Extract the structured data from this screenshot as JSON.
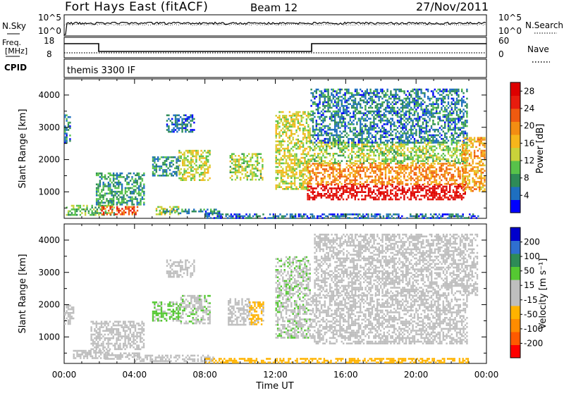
{
  "header": {
    "radar": "Fort Hays East (fitACF)",
    "beam": "Beam 12",
    "date": "27/Nov/2011"
  },
  "noise_panel": {
    "left_label": "N.Sky",
    "right_label": "N.Search",
    "left_ticks": [
      "10^5",
      "10^0"
    ],
    "right_ticks": [
      "10^5",
      "10^0"
    ]
  },
  "freq_panel": {
    "left_label_1": "Freq.",
    "left_label_2": "[MHz]",
    "right_label": "Nave",
    "left_ticks": [
      "18",
      "8"
    ],
    "right_ticks": [
      "60",
      "0"
    ]
  },
  "cpid_panel": {
    "label": "CPID",
    "program": "themis 3300 IF"
  },
  "x_axis": {
    "label": "Time UT",
    "ticks": [
      "00:00",
      "04:00",
      "08:00",
      "12:00",
      "16:00",
      "20:00",
      "00:00"
    ]
  },
  "colors": {
    "power": [
      "#0000ff",
      "#1e6fbf",
      "#2e8b57",
      "#58c24a",
      "#c9d23a",
      "#f6b61b",
      "#f38d12",
      "#ef5a10",
      "#e81c0e",
      "#dd0000"
    ],
    "velocity": [
      "#ff0000",
      "#ff5a00",
      "#ff8c00",
      "#ffb300",
      "#bebebe",
      "#bebebe",
      "#55c832",
      "#2e8b57",
      "#2f6fd0",
      "#0000cc"
    ]
  },
  "chart_data": [
    {
      "type": "heatmap",
      "title": "Power",
      "ylabel": "Slant Range [km]",
      "xlabel": "",
      "ylim": [
        180,
        4500
      ],
      "xlim_hours": [
        0,
        24
      ],
      "yticks": [
        1000,
        2000,
        3000,
        4000
      ],
      "colorbar": {
        "label": "Power [dB]",
        "ticks": [
          4,
          8,
          12,
          16,
          20,
          24,
          28
        ],
        "range": [
          0,
          30
        ]
      },
      "features": [
        {
          "t": [
            0.1,
            2.8
          ],
          "r": [
            280,
            600
          ],
          "v": 10
        },
        {
          "t": [
            2.1,
            4.2
          ],
          "r": [
            330,
            560
          ],
          "v": 24
        },
        {
          "t": [
            1.8,
            4.5
          ],
          "r": [
            600,
            1600
          ],
          "v": 8
        },
        {
          "t": [
            5.2,
            6.5
          ],
          "r": [
            330,
            560
          ],
          "v": 14
        },
        {
          "t": [
            5.6,
            8.8
          ],
          "r": [
            330,
            480
          ],
          "v": 6
        },
        {
          "t": [
            5.0,
            6.6
          ],
          "r": [
            1500,
            2100
          ],
          "v": 7
        },
        {
          "t": [
            6.5,
            8.3
          ],
          "r": [
            1350,
            2300
          ],
          "v": 13
        },
        {
          "t": [
            9.4,
            11.3
          ],
          "r": [
            1350,
            2200
          ],
          "v": 12
        },
        {
          "t": [
            5.8,
            7.4
          ],
          "r": [
            2850,
            3400
          ],
          "v": 5
        },
        {
          "t": [
            12.0,
            14.0
          ],
          "r": [
            1100,
            3500
          ],
          "v": 14
        },
        {
          "t": [
            13.8,
            22.8
          ],
          "r": [
            750,
            1250
          ],
          "v": 28
        },
        {
          "t": [
            13.8,
            22.8
          ],
          "r": [
            1250,
            1900
          ],
          "v": 20
        },
        {
          "t": [
            14.0,
            22.9
          ],
          "r": [
            1900,
            2550
          ],
          "v": 12
        },
        {
          "t": [
            14.0,
            22.9
          ],
          "r": [
            2550,
            4200
          ],
          "v": 6
        },
        {
          "t": [
            22.6,
            23.9
          ],
          "r": [
            1000,
            2700
          ],
          "v": 18
        },
        {
          "t": [
            8.0,
            23.5
          ],
          "r": [
            200,
            330
          ],
          "v": 5
        },
        {
          "t": [
            0.0,
            0.3
          ],
          "r": [
            2500,
            3400
          ],
          "v": 6
        }
      ]
    },
    {
      "type": "heatmap",
      "title": "Velocity",
      "ylabel": "Slant Range [km]",
      "xlabel": "Time UT",
      "ylim": [
        180,
        4500
      ],
      "xlim_hours": [
        0,
        24
      ],
      "yticks": [
        1000,
        2000,
        3000,
        4000
      ],
      "colorbar": {
        "label": "Velocity [m s⁻¹]",
        "ticks": [
          200,
          100,
          50,
          15,
          -15,
          -50,
          -100,
          -200
        ],
        "range": [
          -250,
          250
        ]
      },
      "features": [
        {
          "t": [
            0.5,
            2.6
          ],
          "r": [
            330,
            600
          ],
          "v": 15
        },
        {
          "t": [
            1.5,
            4.5
          ],
          "r": [
            600,
            1500
          ],
          "v": 20
        },
        {
          "t": [
            2.3,
            4.3
          ],
          "r": [
            330,
            520
          ],
          "v": 30
        },
        {
          "t": [
            4.0,
            8.5
          ],
          "r": [
            250,
            450
          ],
          "v": 25
        },
        {
          "t": [
            5.0,
            6.6
          ],
          "r": [
            1500,
            2100
          ],
          "v": 60
        },
        {
          "t": [
            6.6,
            8.3
          ],
          "r": [
            1400,
            2300
          ],
          "v": 40
        },
        {
          "t": [
            9.3,
            10.5
          ],
          "r": [
            1350,
            2200
          ],
          "v": 25
        },
        {
          "t": [
            10.5,
            11.3
          ],
          "r": [
            1400,
            2100
          ],
          "v": -60
        },
        {
          "t": [
            5.8,
            7.4
          ],
          "r": [
            2850,
            3400
          ],
          "v": 30
        },
        {
          "t": [
            12.0,
            14.0
          ],
          "r": [
            1000,
            3500
          ],
          "v": 40
        },
        {
          "t": [
            14.0,
            22.9
          ],
          "r": [
            800,
            2300
          ],
          "v": 0
        },
        {
          "t": [
            14.2,
            23.5
          ],
          "r": [
            2300,
            4200
          ],
          "v": -5
        },
        {
          "t": [
            8.0,
            23.0
          ],
          "r": [
            200,
            350
          ],
          "v": -70
        },
        {
          "t": [
            0.0,
            0.5
          ],
          "r": [
            1400,
            2000
          ],
          "v": 0
        }
      ]
    }
  ]
}
